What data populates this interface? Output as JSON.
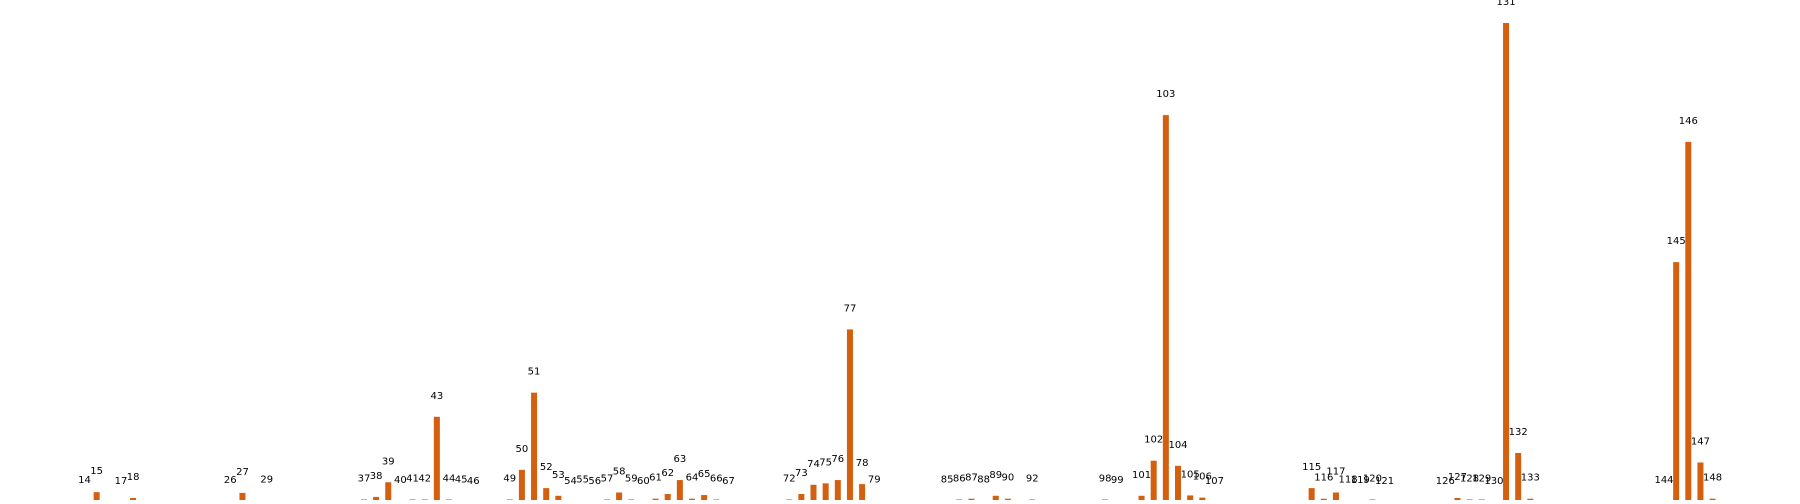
{
  "chart_data": {
    "type": "bar",
    "bar_color": "#d35f0f",
    "grid": false,
    "legend": "none",
    "title": "",
    "xlabel": "",
    "ylabel": "",
    "xlim": [
      6,
      154
    ],
    "ylim": [
      0,
      131
    ],
    "data_labels": "category number above each bar",
    "bars": [
      {
        "x": 14,
        "value": 0.3
      },
      {
        "x": 15,
        "value": 2.7
      },
      {
        "x": 17,
        "value": 0.0
      },
      {
        "x": 18,
        "value": 1.1
      },
      {
        "x": 26,
        "value": 0.3
      },
      {
        "x": 27,
        "value": 2.5
      },
      {
        "x": 29,
        "value": 0.4
      },
      {
        "x": 37,
        "value": 0.7
      },
      {
        "x": 38,
        "value": 1.4
      },
      {
        "x": 39,
        "value": 5.4
      },
      {
        "x": 40,
        "value": 0.3
      },
      {
        "x": 41,
        "value": 0.7
      },
      {
        "x": 42,
        "value": 0.7
      },
      {
        "x": 43,
        "value": 23.3
      },
      {
        "x": 44,
        "value": 0.7
      },
      {
        "x": 45,
        "value": 0.4
      },
      {
        "x": 46,
        "value": 0.0
      },
      {
        "x": 49,
        "value": 0.7
      },
      {
        "x": 50,
        "value": 8.8
      },
      {
        "x": 51,
        "value": 29.9
      },
      {
        "x": 52,
        "value": 3.8
      },
      {
        "x": 53,
        "value": 1.7
      },
      {
        "x": 54,
        "value": 0.0
      },
      {
        "x": 55,
        "value": 0.4
      },
      {
        "x": 56,
        "value": 0.0
      },
      {
        "x": 57,
        "value": 0.7
      },
      {
        "x": 58,
        "value": 2.6
      },
      {
        "x": 59,
        "value": 0.7
      },
      {
        "x": 60,
        "value": 0.0
      },
      {
        "x": 61,
        "value": 0.9
      },
      {
        "x": 62,
        "value": 2.2
      },
      {
        "x": 63,
        "value": 6.0
      },
      {
        "x": 64,
        "value": 0.9
      },
      {
        "x": 65,
        "value": 1.9
      },
      {
        "x": 66,
        "value": 0.7
      },
      {
        "x": 67,
        "value": 0.0
      },
      {
        "x": 72,
        "value": 0.7
      },
      {
        "x": 73,
        "value": 2.2
      },
      {
        "x": 74,
        "value": 4.7
      },
      {
        "x": 75,
        "value": 5.1
      },
      {
        "x": 76,
        "value": 6.0
      },
      {
        "x": 77,
        "value": 47.2
      },
      {
        "x": 78,
        "value": 4.9
      },
      {
        "x": 79,
        "value": 0.4
      },
      {
        "x": 85,
        "value": 0.4
      },
      {
        "x": 86,
        "value": 0.7
      },
      {
        "x": 87,
        "value": 0.9
      },
      {
        "x": 88,
        "value": 0.4
      },
      {
        "x": 89,
        "value": 1.7
      },
      {
        "x": 90,
        "value": 0.9
      },
      {
        "x": 92,
        "value": 0.7
      },
      {
        "x": 98,
        "value": 0.7
      },
      {
        "x": 99,
        "value": 0.3
      },
      {
        "x": 101,
        "value": 1.7
      },
      {
        "x": 102,
        "value": 11.3
      },
      {
        "x": 103,
        "value": 105.8
      },
      {
        "x": 104,
        "value": 9.9
      },
      {
        "x": 105,
        "value": 1.8
      },
      {
        "x": 106,
        "value": 1.2
      },
      {
        "x": 107,
        "value": 0.0
      },
      {
        "x": 115,
        "value": 3.8
      },
      {
        "x": 116,
        "value": 0.9
      },
      {
        "x": 117,
        "value": 2.6
      },
      {
        "x": 118,
        "value": 0.4
      },
      {
        "x": 119,
        "value": 0.3
      },
      {
        "x": 120,
        "value": 0.7
      },
      {
        "x": 121,
        "value": 0.0
      },
      {
        "x": 126,
        "value": 0.0
      },
      {
        "x": 127,
        "value": 1.1
      },
      {
        "x": 128,
        "value": 0.7
      },
      {
        "x": 129,
        "value": 0.7
      },
      {
        "x": 130,
        "value": 0.0
      },
      {
        "x": 131,
        "value": 131.0
      },
      {
        "x": 132,
        "value": 13.4
      },
      {
        "x": 133,
        "value": 0.9
      },
      {
        "x": 144,
        "value": 0.3
      },
      {
        "x": 145,
        "value": 65.6
      },
      {
        "x": 146,
        "value": 98.5
      },
      {
        "x": 147,
        "value": 10.8
      },
      {
        "x": 148,
        "value": 0.9
      }
    ]
  }
}
